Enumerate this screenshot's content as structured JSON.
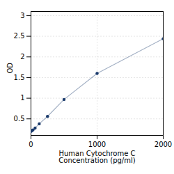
{
  "chart_data": {
    "type": "line",
    "x": [
      0,
      15.6,
      31.25,
      62.5,
      125,
      250,
      500,
      1000,
      2000
    ],
    "values": [
      0.197,
      0.215,
      0.233,
      0.278,
      0.38,
      0.56,
      0.97,
      1.6,
      2.44
    ],
    "color": "#1a3a6b",
    "marker": "circle",
    "xlabel": "Human Cytochrome C\nConcentration (pg/ml)",
    "ylabel": "OD",
    "xlim": [
      0,
      2000
    ],
    "ylim": [
      0.1,
      3.1
    ],
    "xticks": [
      0,
      1000,
      2000
    ],
    "yticks": [
      0.5,
      1,
      1.5,
      2,
      2.5,
      3
    ],
    "grid": true
  }
}
